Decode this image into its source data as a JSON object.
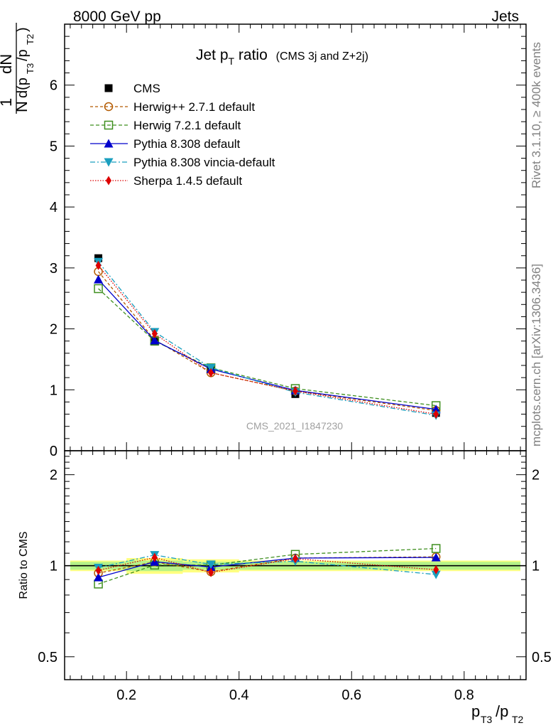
{
  "header": {
    "left": "8000 GeV pp",
    "right": "Jets"
  },
  "side_text": {
    "rivet": "Rivet 3.1.10, ≥ 400k events",
    "mcplots": "mcplots.cern.ch [arXiv:1306.3436]"
  },
  "watermark": "CMS_2021_I1847230",
  "chart_data": [
    {
      "type": "scatter",
      "title_main": "Jet p",
      "title_sub": "T",
      "title_word": " ratio",
      "title_paren": "(CMS 3j and Z+2j)",
      "ylabel": "1/N dN/d(pT3/pT2)",
      "ylim": [
        0,
        7
      ],
      "xlim": [
        0.09,
        0.91
      ],
      "yticks": [
        "0",
        "1",
        "2",
        "3",
        "4",
        "5",
        "6"
      ],
      "x": [
        0.15,
        0.25,
        0.35,
        0.5,
        0.75
      ],
      "legend_position": "top-left",
      "series": [
        {
          "name": "CMS",
          "values": [
            3.16,
            1.79,
            1.35,
            0.93,
            0.62
          ],
          "color": "#000000",
          "marker": "square-filled",
          "dash": ""
        },
        {
          "name": "Herwig++ 2.7.1 default",
          "values": [
            2.94,
            1.82,
            1.28,
            0.98,
            0.66
          ],
          "color": "#b35a00",
          "marker": "circle-open",
          "dash": "4,3"
        },
        {
          "name": "Herwig 7.2.1 default",
          "values": [
            2.66,
            1.8,
            1.36,
            1.02,
            0.74
          ],
          "color": "#3f8f1f",
          "marker": "square-open",
          "dash": "5,3"
        },
        {
          "name": "Pythia 8.308 default",
          "values": [
            2.81,
            1.81,
            1.34,
            0.99,
            0.68
          ],
          "color": "#0000cc",
          "marker": "triangle-up",
          "dash": ""
        },
        {
          "name": "Pythia 8.308 vincia-default",
          "values": [
            3.1,
            1.95,
            1.36,
            0.96,
            0.58
          ],
          "color": "#1a9fbf",
          "marker": "triangle-down",
          "dash": "7,3,2,3"
        },
        {
          "name": "Sherpa 1.4.5 default",
          "values": [
            3.04,
            1.92,
            1.28,
            0.98,
            0.6
          ],
          "color": "#dd0000",
          "marker": "diamond",
          "dash": "1.5,2"
        }
      ]
    },
    {
      "type": "scatter",
      "ylabel": "Ratio to CMS",
      "yscale": "log",
      "ylim": [
        0.42,
        2.4
      ],
      "xlim": [
        0.09,
        0.91
      ],
      "yticks": [
        "0.5",
        "1",
        "2"
      ],
      "xticks": [
        "0.2",
        "0.4",
        "0.6",
        "0.8"
      ],
      "xlabel": "pT3/pT2",
      "x": [
        0.15,
        0.25,
        0.35,
        0.5,
        0.75
      ],
      "band_inner": [
        0.03,
        0.04,
        0.03,
        0.03,
        0.03
      ],
      "band_outer": [
        0.04,
        0.06,
        0.05,
        0.04,
        0.04
      ],
      "series": [
        {
          "name": "Herwig++ 2.7.1 default",
          "values": [
            0.945,
            1.03,
            0.955,
            1.06,
            1.07
          ]
        },
        {
          "name": "Herwig 7.2.1 default",
          "values": [
            0.87,
            1.005,
            1.005,
            1.09,
            1.14
          ]
        },
        {
          "name": "Pythia 8.308 default",
          "values": [
            0.915,
            1.03,
            0.99,
            1.06,
            1.065
          ]
        },
        {
          "name": "Pythia 8.308 vincia-default",
          "values": [
            0.985,
            1.085,
            1.01,
            1.035,
            0.935
          ]
        },
        {
          "name": "Sherpa 1.4.5 default",
          "values": [
            0.965,
            1.065,
            0.95,
            1.055,
            0.97
          ]
        }
      ]
    }
  ]
}
